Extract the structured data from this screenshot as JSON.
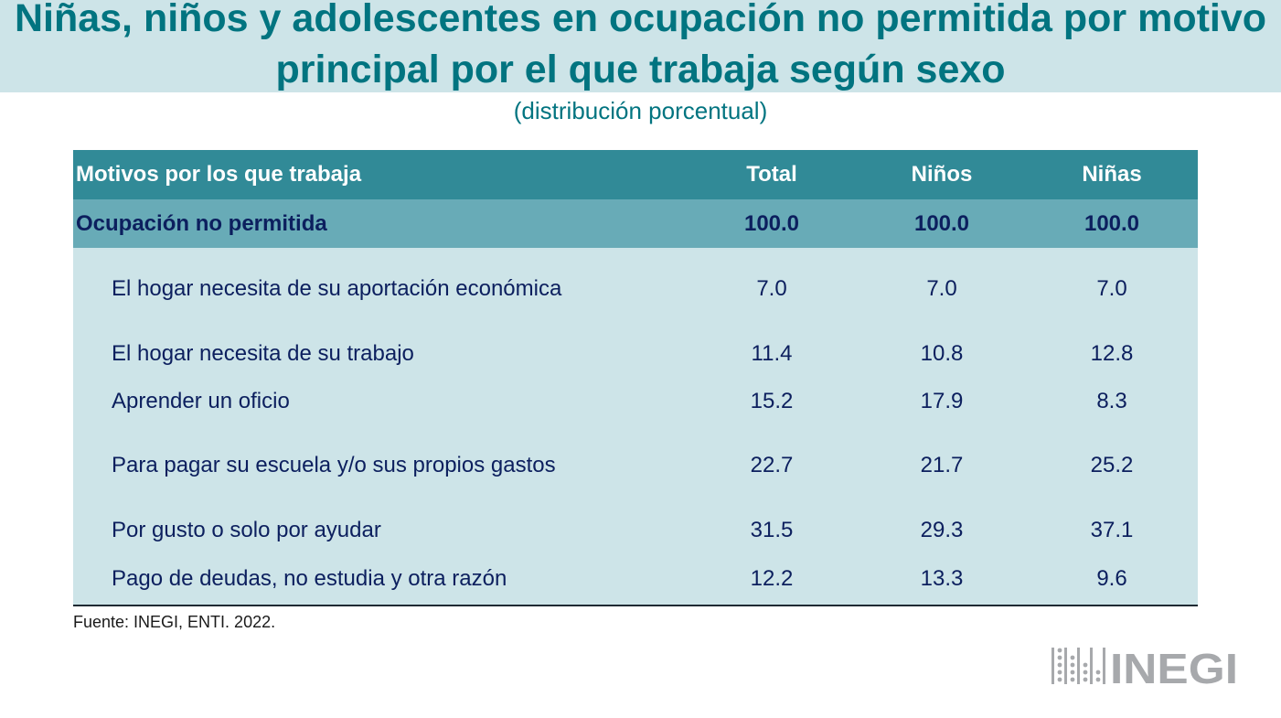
{
  "title": "Niñas, niños y adolescentes en ocupación no permitida por motivo principal por el que trabaja según sexo",
  "subtitle": "(distribución porcentual)",
  "table": {
    "headers": {
      "label": "Motivos por los que trabaja",
      "total": "Total",
      "ninos": "Niños",
      "ninas": "Niñas"
    },
    "total_row": {
      "label": "Ocupación no permitida",
      "total": "100.0",
      "ninos": "100.0",
      "ninas": "100.0"
    },
    "rows": [
      {
        "label": "El hogar necesita de su aportación económica",
        "total": "7.0",
        "ninos": "7.0",
        "ninas": "7.0"
      },
      {
        "label": "El hogar necesita de su trabajo",
        "total": "11.4",
        "ninos": "10.8",
        "ninas": "12.8"
      },
      {
        "label": "Aprender un oficio",
        "total": "15.2",
        "ninos": "17.9",
        "ninas": "8.3"
      },
      {
        "label": "Para pagar su escuela y/o sus propios gastos",
        "total": "22.7",
        "ninos": "21.7",
        "ninas": "25.2"
      },
      {
        "label": "Por gusto o solo por ayudar",
        "total": "31.5",
        "ninos": "29.3",
        "ninas": "37.1"
      },
      {
        "label": "Pago de deudas, no estudia y otra razón",
        "total": "12.2",
        "ninos": "13.3",
        "ninas": "9.6"
      }
    ]
  },
  "source": "Fuente:  INEGI, ENTI. 2022.",
  "logo": {
    "text": "INEGI",
    "icon": "inegi-logo-icon",
    "color": "#a7a9ac"
  },
  "colors": {
    "title": "#017480",
    "band": "#cde4e8",
    "header": "#318a97",
    "total_row": "#68abb7",
    "body_text": "#0c1f5e"
  }
}
